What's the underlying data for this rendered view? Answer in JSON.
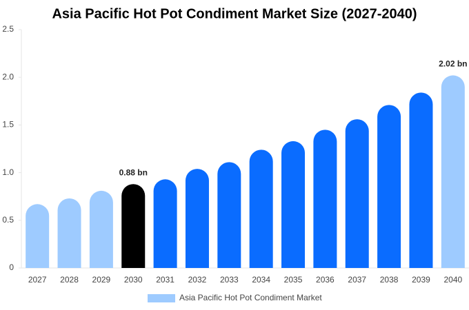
{
  "chart_data": {
    "type": "bar",
    "title": "Asia Pacific Hot Pot Condiment Market Size (2027-2040)",
    "categories": [
      "2027",
      "2028",
      "2029",
      "2030",
      "2031",
      "2032",
      "2033",
      "2034",
      "2035",
      "2036",
      "2037",
      "2038",
      "2039",
      "2040"
    ],
    "series": [
      {
        "name": "Asia Pacific Hot Pot Condiment Market",
        "color": "#9ecbff",
        "values": [
          0.67,
          0.73,
          0.81,
          0.88,
          0.93,
          1.04,
          1.11,
          1.24,
          1.33,
          1.45,
          1.56,
          1.71,
          1.84,
          2.02
        ],
        "value_labels": [
          null,
          null,
          null,
          "0.88 bn",
          null,
          null,
          null,
          null,
          null,
          null,
          null,
          null,
          null,
          "2.02 bn"
        ],
        "bar_colors": [
          "#9ecbff",
          "#9ecbff",
          "#9ecbff",
          "#000000",
          "#0a6cff",
          "#0a6cff",
          "#0a6cff",
          "#0a6cff",
          "#0a6cff",
          "#0a6cff",
          "#0a6cff",
          "#0a6cff",
          "#0a6cff",
          "#9ecbff"
        ]
      }
    ],
    "ylim": [
      0,
      2.5
    ],
    "yticks": [
      0,
      0.5,
      {
        "value": 1,
        "label": "1.0"
      },
      1.5,
      {
        "value": 2,
        "label": "2.0"
      },
      2.5
    ],
    "grid": false
  }
}
